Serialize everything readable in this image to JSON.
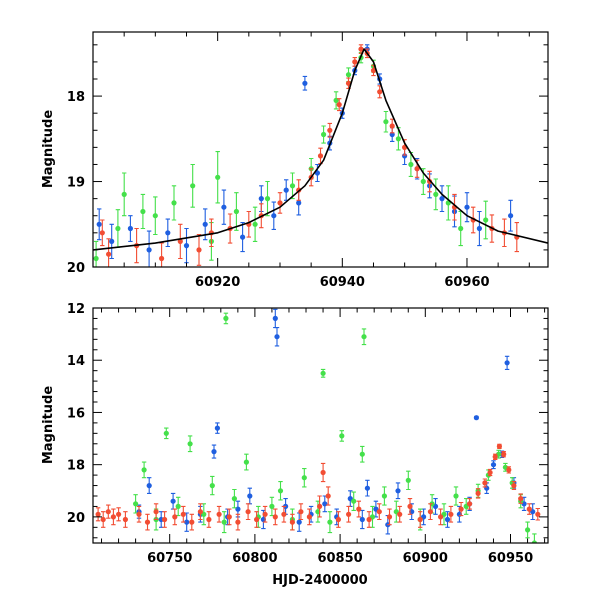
{
  "chart_data": [
    {
      "type": "scatter",
      "panel": "top",
      "xlabel": "",
      "ylabel": "Magnitude",
      "xlim": [
        60900,
        60973
      ],
      "ylim": [
        20,
        17.25
      ],
      "y_inverted": true,
      "x_ticks": [
        60920,
        60940,
        60960
      ],
      "x_tick_labels": [
        "60920",
        "60940",
        "60960"
      ],
      "y_ticks": [
        18,
        19,
        20
      ],
      "y_tick_labels": [
        "18",
        "19",
        "20"
      ],
      "model_curve": {
        "name": "model fit",
        "color": "#000000",
        "x": [
          60900,
          60910,
          60920,
          60925,
          60930,
          60934,
          60937,
          60940,
          60942,
          60943.5,
          60945,
          60947,
          60950,
          60953,
          60956,
          60960,
          60965,
          60973
        ],
        "y": [
          19.8,
          19.72,
          19.6,
          19.48,
          19.3,
          19.05,
          18.75,
          18.2,
          17.7,
          17.45,
          17.6,
          18.05,
          18.55,
          18.9,
          19.15,
          19.4,
          19.58,
          19.72
        ]
      },
      "series": [
        {
          "name": "blue",
          "color": "#1f5fe0",
          "x": [
            60901,
            60903,
            60906,
            60909,
            60912,
            60915,
            60918,
            60921,
            60924,
            60927,
            60929,
            60931,
            60933,
            60934,
            60936,
            60938,
            60940,
            60942,
            60944,
            60946,
            60948,
            60950,
            60952,
            60954,
            60956,
            60958,
            60960,
            60962,
            60967
          ],
          "y": [
            19.5,
            19.7,
            19.55,
            19.8,
            19.6,
            19.75,
            19.5,
            19.3,
            19.65,
            19.2,
            19.4,
            19.1,
            19.25,
            17.85,
            18.9,
            18.55,
            18.2,
            17.7,
            17.45,
            17.8,
            18.45,
            18.7,
            18.85,
            19.05,
            19.2,
            19.35,
            19.3,
            19.55,
            19.4
          ],
          "err": [
            0.18,
            0.2,
            0.15,
            0.22,
            0.16,
            0.2,
            0.18,
            0.2,
            0.17,
            0.15,
            0.16,
            0.12,
            0.14,
            0.08,
            0.1,
            0.08,
            0.06,
            0.05,
            0.05,
            0.06,
            0.08,
            0.1,
            0.12,
            0.14,
            0.15,
            0.18,
            0.17,
            0.2,
            0.18
          ]
        },
        {
          "name": "green",
          "color": "#44e04a",
          "x": [
            60900.5,
            60904,
            60905,
            60908,
            60910,
            60913,
            60916,
            60919,
            60920,
            60923,
            60926,
            60928,
            60932,
            60935,
            60937,
            60939,
            60941,
            60943,
            60945,
            60947,
            60949,
            60951,
            60953,
            60955,
            60957,
            60959,
            60963
          ],
          "y": [
            19.9,
            19.55,
            19.15,
            19.35,
            19.4,
            19.25,
            19.05,
            19.7,
            18.95,
            19.35,
            19.5,
            19.2,
            19.05,
            18.85,
            18.45,
            18.05,
            17.75,
            17.55,
            17.65,
            18.3,
            18.5,
            18.8,
            19.0,
            19.15,
            19.25,
            19.55,
            19.45
          ],
          "err": [
            0.2,
            0.22,
            0.25,
            0.2,
            0.22,
            0.2,
            0.25,
            0.22,
            0.3,
            0.22,
            0.2,
            0.2,
            0.15,
            0.12,
            0.1,
            0.1,
            0.08,
            0.06,
            0.07,
            0.12,
            0.13,
            0.14,
            0.15,
            0.18,
            0.2,
            0.2,
            0.22
          ]
        },
        {
          "name": "red",
          "color": "#f24d33",
          "x": [
            60901.5,
            60902.5,
            60907,
            60911,
            60914,
            60917,
            60919,
            60922,
            60925,
            60927,
            60930,
            60933,
            60935,
            60936.5,
            60938,
            60939.5,
            60941,
            60942,
            60943,
            60944,
            60945,
            60946,
            60948,
            60950,
            60952,
            60954,
            60958,
            60961,
            60964,
            60966,
            60968
          ],
          "y": [
            19.6,
            19.85,
            19.75,
            19.9,
            19.7,
            19.8,
            19.6,
            19.55,
            19.5,
            19.4,
            19.25,
            19.1,
            18.95,
            18.7,
            18.4,
            18.1,
            17.85,
            17.6,
            17.45,
            17.5,
            17.7,
            17.95,
            18.35,
            18.6,
            18.85,
            19.0,
            19.3,
            19.45,
            19.55,
            19.6,
            19.65
          ],
          "err": [
            0.15,
            0.18,
            0.2,
            0.18,
            0.2,
            0.18,
            0.16,
            0.17,
            0.15,
            0.14,
            0.12,
            0.12,
            0.1,
            0.09,
            0.08,
            0.07,
            0.06,
            0.05,
            0.05,
            0.05,
            0.06,
            0.07,
            0.08,
            0.09,
            0.1,
            0.12,
            0.15,
            0.15,
            0.16,
            0.16,
            0.17
          ]
        }
      ]
    },
    {
      "type": "scatter",
      "panel": "bottom",
      "xlabel": "HJD-2400000",
      "ylabel": "Magnitude",
      "xlim": [
        60705,
        60972
      ],
      "ylim": [
        21.0,
        12.0
      ],
      "y_inverted": true,
      "x_ticks": [
        60750,
        60800,
        60850,
        60900,
        60950
      ],
      "x_tick_labels": [
        "60750",
        "60800",
        "60850",
        "60900",
        "60950"
      ],
      "y_ticks": [
        12,
        14,
        16,
        18,
        20
      ],
      "y_tick_labels": [
        "12",
        "14",
        "16",
        "18",
        "20"
      ],
      "series": [
        {
          "name": "blue",
          "color": "#1f5fe0",
          "x": [
            60732,
            60738,
            60745,
            60752,
            60760,
            60768,
            60776,
            60778,
            60784,
            60790,
            60797,
            60805,
            60812,
            60813,
            60818,
            60826,
            60833,
            60841,
            60848,
            60856,
            60863,
            60866,
            60871,
            60878,
            60884,
            60892,
            60899,
            60906,
            60913,
            60920,
            60926,
            60930,
            60936,
            60940,
            60945,
            60948,
            60952,
            60958,
            60963
          ],
          "y": [
            19.8,
            18.8,
            20.1,
            19.4,
            20.2,
            19.9,
            17.5,
            16.6,
            20.0,
            19.7,
            19.2,
            20.1,
            12.4,
            13.1,
            19.6,
            20.2,
            19.9,
            19.5,
            20.0,
            19.3,
            20.1,
            18.9,
            19.7,
            20.3,
            19.0,
            19.8,
            20.0,
            19.6,
            20.1,
            19.9,
            19.5,
            16.2,
            18.9,
            18.0,
            17.6,
            14.1,
            18.7,
            19.5,
            19.8
          ],
          "err": [
            0.25,
            0.3,
            0.3,
            0.3,
            0.35,
            0.3,
            0.25,
            0.2,
            0.3,
            0.3,
            0.3,
            0.35,
            0.35,
            0.35,
            0.3,
            0.35,
            0.3,
            0.3,
            0.3,
            0.3,
            0.35,
            0.3,
            0.3,
            0.35,
            0.3,
            0.3,
            0.3,
            0.3,
            0.3,
            0.3,
            0.25,
            0.05,
            0.2,
            0.15,
            0.12,
            0.25,
            0.2,
            0.25,
            0.3
          ]
        },
        {
          "name": "green",
          "color": "#44e04a",
          "x": [
            60730,
            60735,
            60742,
            60748,
            60755,
            60762,
            60770,
            60775,
            60782,
            60783,
            60788,
            60795,
            60802,
            60810,
            60815,
            60822,
            60829,
            60837,
            60840,
            60844,
            60851,
            60858,
            60863,
            60864,
            60869,
            60876,
            60883,
            60890,
            60897,
            60904,
            60911,
            60918,
            60924,
            60931,
            60937,
            60943,
            60947,
            60951,
            60956,
            60960,
            60964
          ],
          "y": [
            19.5,
            18.2,
            20.1,
            16.8,
            19.6,
            17.2,
            19.9,
            18.8,
            20.2,
            12.4,
            19.3,
            17.9,
            20.0,
            19.6,
            19.0,
            20.1,
            18.5,
            19.8,
            14.5,
            20.2,
            16.9,
            19.4,
            17.6,
            13.1,
            20.0,
            19.2,
            19.8,
            18.6,
            20.1,
            19.5,
            19.9,
            19.2,
            19.6,
            19.0,
            18.4,
            17.6,
            18.1,
            18.7,
            19.4,
            20.5,
            21.0
          ],
          "err": [
            0.35,
            0.3,
            0.4,
            0.2,
            0.35,
            0.3,
            0.4,
            0.35,
            0.4,
            0.2,
            0.35,
            0.3,
            0.4,
            0.35,
            0.35,
            0.4,
            0.35,
            0.4,
            0.15,
            0.4,
            0.2,
            0.35,
            0.3,
            0.3,
            0.4,
            0.35,
            0.4,
            0.35,
            0.4,
            0.35,
            0.4,
            0.35,
            0.3,
            0.25,
            0.2,
            0.15,
            0.15,
            0.2,
            0.25,
            0.3,
            0.35
          ]
        },
        {
          "name": "red",
          "color": "#f24d33",
          "x": [
            60708,
            60711,
            60714,
            60717,
            60720,
            60724,
            60732,
            60737,
            60742,
            60747,
            60753,
            60758,
            60763,
            60768,
            60773,
            60779,
            60785,
            60790,
            60796,
            60801,
            60806,
            60812,
            60817,
            60822,
            60827,
            60832,
            60838,
            60840,
            60843,
            60849,
            60855,
            60861,
            60867,
            60873,
            60879,
            60885,
            60891,
            60897,
            60903,
            60909,
            60915,
            60921,
            60926,
            60931,
            60935,
            60938,
            60941,
            60943.5,
            60946,
            60949,
            60952,
            60956,
            60961,
            60966
          ],
          "y": [
            19.9,
            20.1,
            19.8,
            20.0,
            19.9,
            20.1,
            19.9,
            20.2,
            19.8,
            20.1,
            20.0,
            19.9,
            20.2,
            19.8,
            20.1,
            19.9,
            20.0,
            20.2,
            19.8,
            20.1,
            19.9,
            20.0,
            19.9,
            20.2,
            19.8,
            20.0,
            19.6,
            18.3,
            19.2,
            20.1,
            19.9,
            19.7,
            20.1,
            19.8,
            20.0,
            19.9,
            19.6,
            20.1,
            19.8,
            20.0,
            19.9,
            19.7,
            19.5,
            19.1,
            18.7,
            18.3,
            17.7,
            17.3,
            17.6,
            18.2,
            18.8,
            19.3,
            19.7,
            19.9
          ],
          "err": [
            0.25,
            0.3,
            0.25,
            0.3,
            0.25,
            0.3,
            0.3,
            0.3,
            0.3,
            0.3,
            0.3,
            0.3,
            0.3,
            0.3,
            0.3,
            0.3,
            0.3,
            0.3,
            0.3,
            0.3,
            0.3,
            0.3,
            0.3,
            0.3,
            0.3,
            0.3,
            0.4,
            0.35,
            0.35,
            0.3,
            0.3,
            0.3,
            0.3,
            0.3,
            0.3,
            0.3,
            0.3,
            0.3,
            0.3,
            0.3,
            0.3,
            0.25,
            0.2,
            0.18,
            0.15,
            0.12,
            0.1,
            0.08,
            0.1,
            0.12,
            0.15,
            0.18,
            0.2,
            0.22
          ]
        }
      ]
    }
  ]
}
